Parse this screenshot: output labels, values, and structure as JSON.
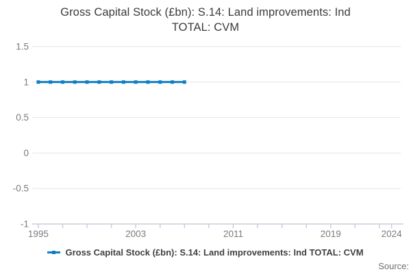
{
  "header": {
    "title_lines": [
      "Gross Capital Stock (£bn): S.14: Land improvements: Ind",
      "TOTAL: CVM"
    ]
  },
  "legend": {
    "label": "Gross Capital Stock (£bn): S.14: Land improvements: Ind TOTAL: CVM"
  },
  "footer": {
    "source_label": "Source:"
  },
  "colors": {
    "line": "#0F7EC2",
    "grid": "#E6E6E6",
    "axis": "#C4D0DC",
    "tick_label": "#7B7B7B",
    "title": "#3A3A3C",
    "legend_text": "#414042",
    "source_text": "#6F6F6F",
    "background": "#FFFFFF"
  },
  "chart_data": {
    "type": "line",
    "title": "Gross Capital Stock (£bn): S.14: Land improvements: Ind TOTAL: CVM",
    "x": [
      1995,
      1996,
      1997,
      1998,
      1999,
      2000,
      2001,
      2002,
      2003,
      2004,
      2005,
      2006,
      2007
    ],
    "series": [
      {
        "name": "Gross Capital Stock (£bn): S.14: Land improvements: Ind TOTAL: CVM",
        "values": [
          1,
          1,
          1,
          1,
          1,
          1,
          1,
          1,
          1,
          1,
          1,
          1,
          1
        ]
      }
    ],
    "xlabel": "",
    "ylabel": "",
    "xlim": [
      1994.5,
      2024.75
    ],
    "ylim": [
      -1,
      1.5
    ],
    "yticks": [
      1.5,
      1,
      0.5,
      0,
      -0.5,
      -1
    ],
    "xticks": [
      1995,
      1997,
      1999,
      2001,
      2003,
      2005,
      2007,
      2009,
      2011,
      2013,
      2015,
      2017,
      2019,
      2021,
      2023,
      2024
    ],
    "xtick_label_positions": [
      1995,
      2003,
      2011,
      2019,
      2024
    ],
    "xtick_labels": [
      "1995",
      "2003",
      "2011",
      "2019",
      "2024"
    ],
    "grid": true,
    "legend_position": "bottom",
    "marker": "square"
  }
}
